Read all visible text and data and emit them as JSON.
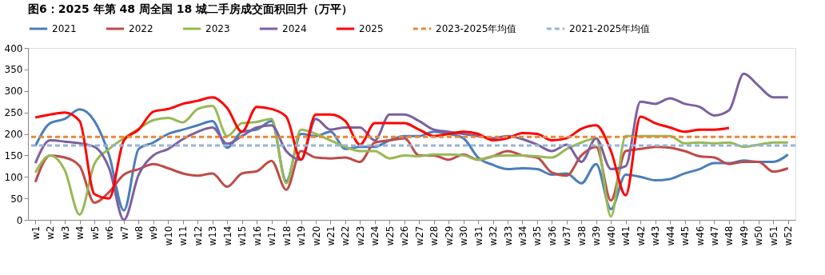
{
  "chart_data": {
    "type": "line",
    "title": "图6：2025 年第 48 周全国 18 城二手房成交面积回升（万平）",
    "categories": [
      "w1",
      "w2",
      "w3",
      "w4",
      "w5",
      "w6",
      "w7",
      "w8",
      "w9",
      "w10",
      "w11",
      "w12",
      "w13",
      "w14",
      "w15",
      "w16",
      "w17",
      "w18",
      "w19",
      "w20",
      "w21",
      "w22",
      "w23",
      "w24",
      "w25",
      "w26",
      "w27",
      "w28",
      "w29",
      "w30",
      "w31",
      "w32",
      "w33",
      "w34",
      "w35",
      "w36",
      "w37",
      "w38",
      "w39",
      "w40",
      "w41",
      "w42",
      "w43",
      "w44",
      "w45",
      "w46",
      "w47",
      "w48",
      "w49",
      "w50",
      "w51",
      "w52"
    ],
    "ylim": [
      0,
      400
    ],
    "yticks": [
      0,
      50,
      100,
      150,
      200,
      250,
      300,
      350,
      400
    ],
    "grid": false,
    "legend": "top",
    "marker": "none",
    "line_style": "solid",
    "series": [
      {
        "name": "2021",
        "color": "#4a7ebb",
        "values": [
          172,
          225,
          235,
          257,
          230,
          150,
          22,
          165,
          180,
          200,
          210,
          220,
          230,
          168,
          205,
          210,
          230,
          90,
          200,
          195,
          205,
          165,
          170,
          170,
          185,
          195,
          195,
          205,
          200,
          190,
          145,
          128,
          118,
          120,
          118,
          105,
          108,
          85,
          130,
          25,
          105,
          100,
          92,
          95,
          108,
          118,
          132,
          132,
          138,
          135,
          135,
          152
        ]
      },
      {
        "name": "2022",
        "color": "#be4b48",
        "values": [
          88,
          150,
          145,
          125,
          40,
          65,
          105,
          118,
          130,
          120,
          108,
          103,
          108,
          77,
          108,
          113,
          137,
          70,
          160,
          145,
          143,
          145,
          135,
          180,
          185,
          190,
          150,
          150,
          140,
          152,
          140,
          148,
          160,
          150,
          145,
          110,
          103,
          150,
          170,
          45,
          160,
          165,
          170,
          168,
          160,
          148,
          145,
          130,
          135,
          135,
          112,
          120
        ]
      },
      {
        "name": "2023",
        "color": "#98b954",
        "values": [
          110,
          150,
          115,
          12,
          130,
          165,
          190,
          212,
          232,
          237,
          227,
          258,
          265,
          195,
          225,
          228,
          235,
          85,
          210,
          200,
          185,
          170,
          160,
          160,
          143,
          150,
          148,
          152,
          152,
          150,
          140,
          148,
          150,
          150,
          148,
          145,
          165,
          180,
          190,
          8,
          195,
          195,
          195,
          195,
          178,
          180,
          178,
          180,
          170,
          175,
          180,
          180
        ]
      },
      {
        "name": "2024",
        "color": "#7d60a0",
        "values": [
          132,
          185,
          182,
          178,
          170,
          120,
          0,
          105,
          150,
          165,
          188,
          205,
          215,
          177,
          195,
          215,
          220,
          160,
          140,
          235,
          210,
          215,
          215,
          185,
          245,
          245,
          230,
          210,
          205,
          200,
          195,
          190,
          195,
          188,
          175,
          160,
          175,
          135,
          190,
          118,
          125,
          275,
          270,
          283,
          270,
          263,
          243,
          255,
          340,
          312,
          285,
          285
        ]
      },
      {
        "name": "2025",
        "color": "#ff0000",
        "values": [
          238,
          245,
          250,
          230,
          60,
          50,
          185,
          210,
          252,
          258,
          270,
          277,
          285,
          260,
          205,
          263,
          258,
          240,
          140,
          245,
          245,
          230,
          175,
          225,
          225,
          225,
          210,
          195,
          200,
          205,
          200,
          185,
          190,
          202,
          200,
          185,
          190,
          212,
          220,
          160,
          57,
          240,
          225,
          215,
          205,
          210,
          210,
          214,
          null,
          null,
          null,
          null
        ]
      }
    ],
    "ref_lines": [
      {
        "axis": "y",
        "value": 193,
        "label": "2023-2025年均值",
        "color": "#e8873a",
        "line_style": "dashed"
      },
      {
        "axis": "y",
        "value": 173,
        "label": "2021-2025年均值",
        "color": "#95b3d7",
        "line_style": "dashed"
      }
    ]
  }
}
